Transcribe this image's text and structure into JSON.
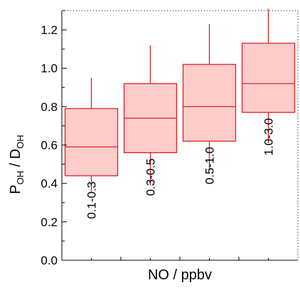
{
  "chart_data": {
    "type": "box",
    "title": "",
    "xlabel": "NO / ppbv",
    "ylabel": {
      "p": "P",
      "p_sub": "OH",
      "sep": " / ",
      "d": "D",
      "d_sub": "OH"
    },
    "ylim": [
      0.0,
      1.3
    ],
    "yticks": [
      "0.0",
      "0.2",
      "0.4",
      "0.6",
      "0.8",
      "1.0",
      "1.2"
    ],
    "ytick_values": [
      0.0,
      0.2,
      0.4,
      0.6,
      0.8,
      1.0,
      1.2
    ],
    "yminor_step": 0.1,
    "categories": [
      "0.1-0.3",
      "0.3-0.5",
      "0.5-1.0",
      "1.0-3.0"
    ],
    "boxes": [
      {
        "category": "0.1-0.3",
        "whisker_low": 0.35,
        "q1": 0.44,
        "median": 0.59,
        "q3": 0.79,
        "whisker_high": 0.95
      },
      {
        "category": "0.3-0.5",
        "whisker_low": 0.39,
        "q1": 0.56,
        "median": 0.74,
        "q3": 0.92,
        "whisker_high": 1.12
      },
      {
        "category": "0.5-1.0",
        "whisker_low": 0.47,
        "q1": 0.62,
        "median": 0.8,
        "q3": 1.02,
        "whisker_high": 1.23
      },
      {
        "category": "1.0-3.0",
        "whisker_low": 0.61,
        "q1": 0.77,
        "median": 0.92,
        "q3": 1.13,
        "whisker_high": 1.31
      }
    ],
    "grid": false,
    "legend": "none",
    "colors": {
      "box_fill": "#ffcccc",
      "box_stroke": "#dd2222",
      "axis": "#000000"
    }
  }
}
